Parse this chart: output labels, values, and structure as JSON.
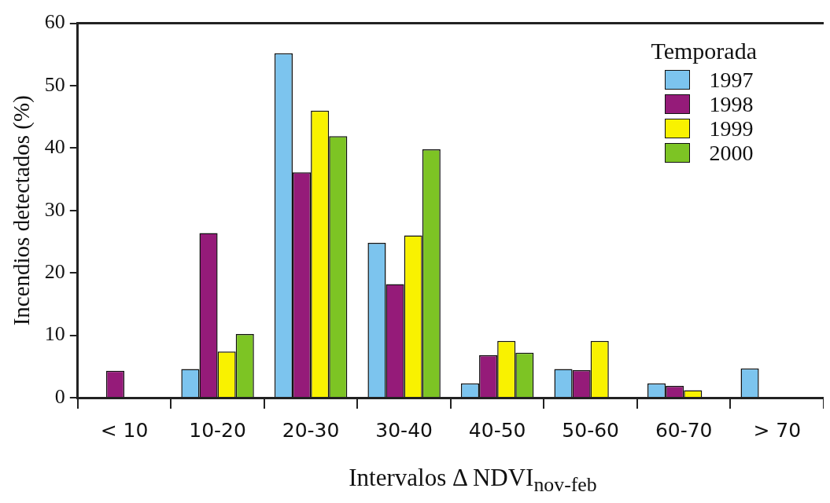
{
  "chart_data": {
    "type": "bar",
    "xlabel": "Intervalos Δ NDVI$_{nov-feb}$",
    "ylabel": "Incendios detectados (%)",
    "legend_title": "Temporada",
    "legend": "top right",
    "grid": false,
    "categories": [
      "< 10",
      "10-20",
      "20-30",
      "30-40",
      "40-50",
      "50-60",
      "60-70",
      "> 70"
    ],
    "ylim": [
      0,
      60
    ],
    "yticks": [
      0,
      10,
      20,
      30,
      40,
      50,
      60
    ],
    "series": [
      {
        "name": "1997",
        "color": "#7cc4ee",
        "values": [
          null,
          4.6,
          55.2,
          24.8,
          2.3,
          4.6,
          2.3,
          4.7
        ]
      },
      {
        "name": "1998",
        "color": "#951b79",
        "values": [
          4.3,
          26.4,
          36.1,
          18.2,
          6.8,
          4.4,
          1.9,
          null
        ]
      },
      {
        "name": "1999",
        "color": "#f9f200",
        "values": [
          null,
          7.4,
          46.0,
          26.0,
          9.1,
          9.1,
          1.2,
          null
        ]
      },
      {
        "name": "2000",
        "color": "#7dc424",
        "values": [
          null,
          10.2,
          41.9,
          39.8,
          7.2,
          null,
          null,
          null
        ]
      }
    ]
  }
}
